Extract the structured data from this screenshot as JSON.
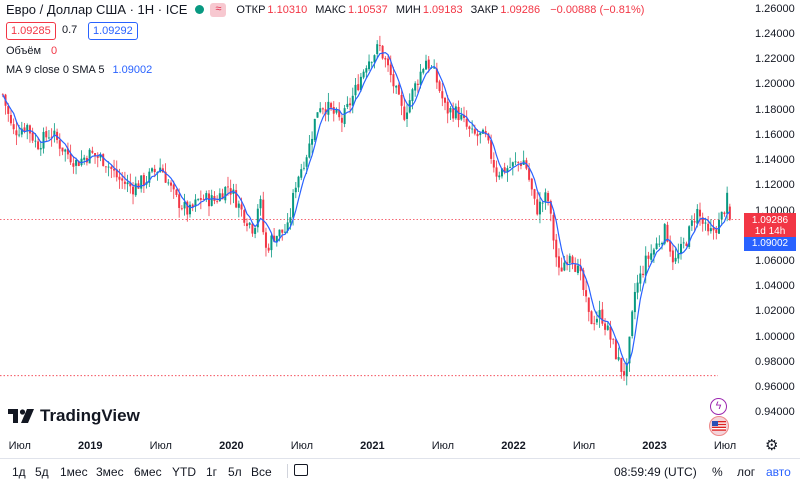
{
  "header": {
    "symbol": "Евро / Доллар США · 1Н · ICE",
    "ohlc": [
      {
        "label": "ОТКР",
        "value": "1.10310"
      },
      {
        "label": "МАКС",
        "value": "1.10537"
      },
      {
        "label": "МИН",
        "value": "1.09183"
      },
      {
        "label": "ЗАКР",
        "value": "1.09286"
      },
      {
        "label": "",
        "value": "−0.00888 (−0.81%)"
      }
    ],
    "tilde": "≈",
    "sell_price": "1.09285",
    "spread": "0.7",
    "buy_price": "1.09292",
    "volume_label": "Объём",
    "volume_value": "0",
    "ma_label": "MA 9 close 0 SMA 5",
    "ma_value": "1.09002"
  },
  "colors": {
    "up": "#089981",
    "down": "#f23645",
    "ma": "#2962ff",
    "accent": "#2962ff"
  },
  "price_tags": {
    "last": "1.09286",
    "countdown": "1d 14h",
    "ma": "1.09002"
  },
  "logo_text": "TradingView",
  "x_axis": [
    {
      "label": "Июл",
      "major": false
    },
    {
      "label": "2019",
      "major": true
    },
    {
      "label": "Июл",
      "major": false
    },
    {
      "label": "2020",
      "major": true
    },
    {
      "label": "Июл",
      "major": false
    },
    {
      "label": "2021",
      "major": true
    },
    {
      "label": "Июл",
      "major": false
    },
    {
      "label": "2022",
      "major": true
    },
    {
      "label": "Июл",
      "major": false
    },
    {
      "label": "2023",
      "major": true
    },
    {
      "label": "Июл",
      "major": false
    }
  ],
  "bottom_bar": {
    "timeframes": [
      "1д",
      "5д",
      "1мес",
      "3мес",
      "6мес",
      "YTD",
      "1г",
      "5л",
      "Все"
    ],
    "clock": "08:59:49 (UTC)",
    "percent": "%",
    "log": "лог",
    "auto": "авто"
  },
  "chart_data": {
    "type": "candlestick",
    "title": "Евро / Доллар США · 1Н · ICE",
    "xlabel": "",
    "ylabel": "",
    "ylim": [
      0.93,
      1.265
    ],
    "y_ticks": [
      "1.26000",
      "1.24000",
      "1.22000",
      "1.20000",
      "1.18000",
      "1.16000",
      "1.14000",
      "1.12000",
      "1.10000",
      "1.08000",
      "1.06000",
      "1.04000",
      "1.02000",
      "1.00000",
      "0.98000",
      "0.96000",
      "0.94000"
    ],
    "interval": "1 week",
    "x_range": [
      "2018-05",
      "2023-08"
    ],
    "series": [
      {
        "name": "Евро / Доллар США",
        "kind": "candles"
      },
      {
        "name": "MA 9 close 0 SMA 5",
        "kind": "line",
        "last": 1.09002
      }
    ],
    "close_path": [
      [
        2018.38,
        1.192
      ],
      [
        2018.45,
        1.162
      ],
      [
        2018.55,
        1.168
      ],
      [
        2018.62,
        1.152
      ],
      [
        2018.72,
        1.162
      ],
      [
        2018.8,
        1.15
      ],
      [
        2018.9,
        1.138
      ],
      [
        2019.0,
        1.145
      ],
      [
        2019.1,
        1.14
      ],
      [
        2019.2,
        1.125
      ],
      [
        2019.3,
        1.118
      ],
      [
        2019.4,
        1.125
      ],
      [
        2019.5,
        1.135
      ],
      [
        2019.6,
        1.11
      ],
      [
        2019.7,
        1.098
      ],
      [
        2019.78,
        1.11
      ],
      [
        2019.88,
        1.108
      ],
      [
        2019.98,
        1.12
      ],
      [
        2020.08,
        1.098
      ],
      [
        2020.16,
        1.085
      ],
      [
        2020.2,
        1.112
      ],
      [
        2020.24,
        1.068
      ],
      [
        2020.3,
        1.08
      ],
      [
        2020.4,
        1.085
      ],
      [
        2020.46,
        1.124
      ],
      [
        2020.55,
        1.15
      ],
      [
        2020.62,
        1.185
      ],
      [
        2020.7,
        1.18
      ],
      [
        2020.78,
        1.17
      ],
      [
        2020.86,
        1.19
      ],
      [
        2020.96,
        1.218
      ],
      [
        2021.05,
        1.23
      ],
      [
        2021.12,
        1.21
      ],
      [
        2021.22,
        1.175
      ],
      [
        2021.3,
        1.198
      ],
      [
        2021.38,
        1.22
      ],
      [
        2021.45,
        1.205
      ],
      [
        2021.52,
        1.18
      ],
      [
        2021.6,
        1.178
      ],
      [
        2021.7,
        1.16
      ],
      [
        2021.8,
        1.158
      ],
      [
        2021.88,
        1.13
      ],
      [
        2021.98,
        1.135
      ],
      [
        2022.08,
        1.14
      ],
      [
        2022.16,
        1.1
      ],
      [
        2022.24,
        1.112
      ],
      [
        2022.32,
        1.05
      ],
      [
        2022.4,
        1.068
      ],
      [
        2022.48,
        1.045
      ],
      [
        2022.54,
        1.012
      ],
      [
        2022.62,
        1.018
      ],
      [
        2022.7,
        0.995
      ],
      [
        2022.76,
        0.975
      ],
      [
        2022.8,
        0.97
      ],
      [
        2022.86,
        1.035
      ],
      [
        2022.94,
        1.06
      ],
      [
        2023.0,
        1.07
      ],
      [
        2023.08,
        1.085
      ],
      [
        2023.14,
        1.058
      ],
      [
        2023.22,
        1.075
      ],
      [
        2023.3,
        1.1
      ],
      [
        2023.38,
        1.08
      ],
      [
        2023.46,
        1.09
      ],
      [
        2023.52,
        1.11
      ],
      [
        2023.55,
        1.0929
      ]
    ],
    "last_close": 1.09286,
    "legend": "top-left",
    "grid": false
  }
}
